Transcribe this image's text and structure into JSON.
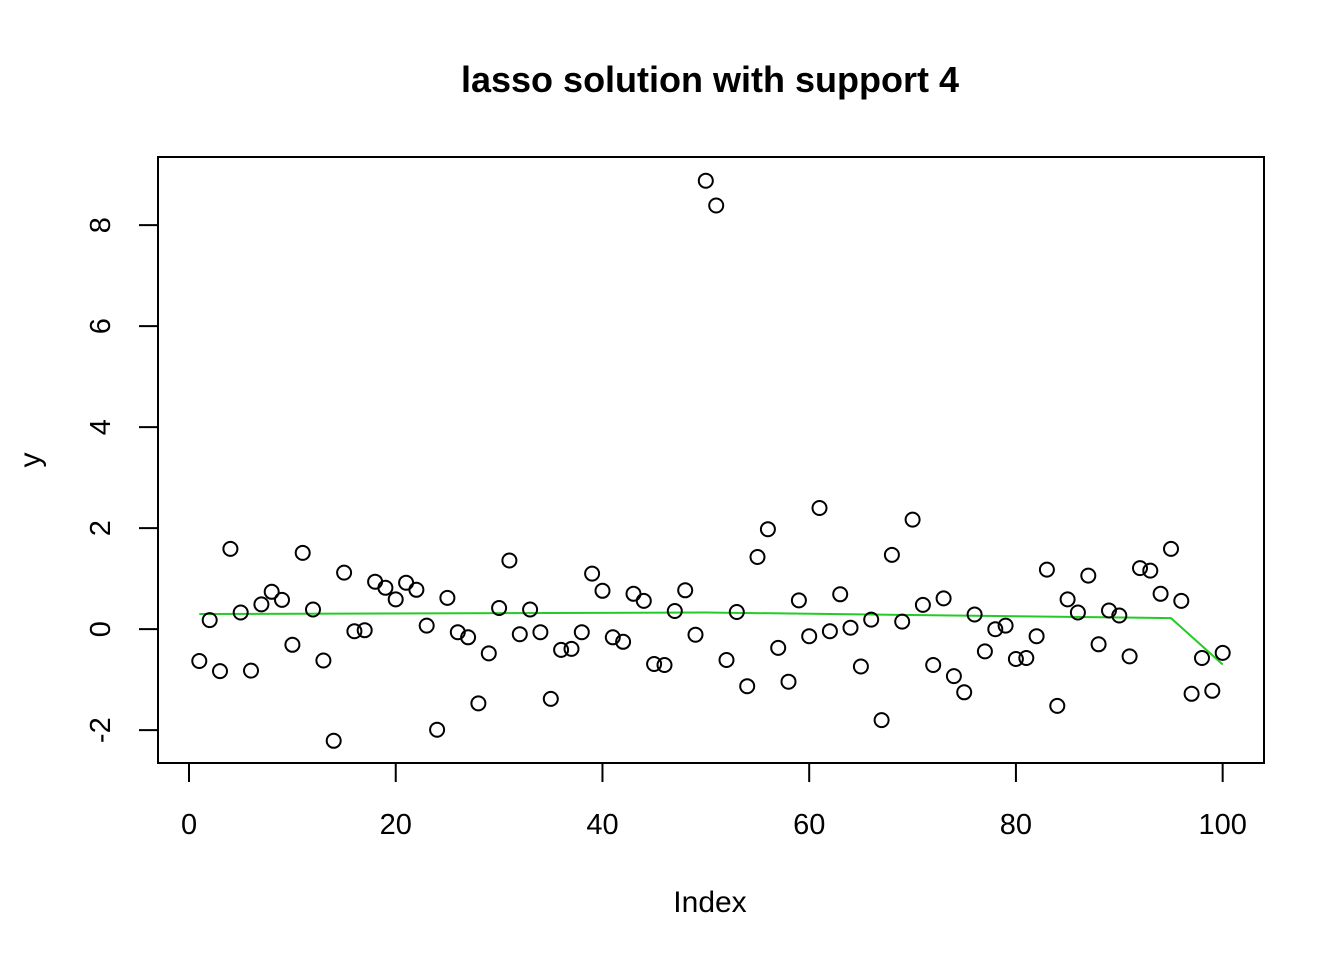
{
  "chart_data": {
    "type": "scatter",
    "title": "lasso solution with support 4",
    "xlabel": "Index",
    "ylabel": "y",
    "xlim": [
      -3,
      104
    ],
    "ylim": [
      -2.65,
      9.35
    ],
    "xticks": [
      0,
      20,
      40,
      60,
      80,
      100
    ],
    "xtick_labels": [
      "0",
      "20",
      "40",
      "60",
      "80",
      "100"
    ],
    "yticks": [
      -2,
      0,
      2,
      4,
      6,
      8
    ],
    "ytick_labels": [
      "-2",
      "0",
      "2",
      "4",
      "6",
      "8"
    ],
    "grid": false,
    "legend": "none",
    "colors": {
      "points": "#000000",
      "fit": "#22cc22",
      "frame": "#000000"
    },
    "series": [
      {
        "kind": "points",
        "x": [
          1,
          2,
          3,
          4,
          5,
          6,
          7,
          8,
          9,
          10,
          11,
          12,
          13,
          14,
          15,
          16,
          17,
          18,
          19,
          20,
          21,
          22,
          23,
          24,
          25,
          26,
          27,
          28,
          29,
          30,
          31,
          32,
          33,
          34,
          35,
          36,
          37,
          38,
          39,
          40,
          41,
          42,
          43,
          44,
          45,
          46,
          47,
          48,
          49,
          50,
          51,
          52,
          53,
          54,
          55,
          56,
          57,
          58,
          59,
          60,
          61,
          62,
          63,
          64,
          65,
          66,
          67,
          68,
          69,
          70,
          71,
          72,
          73,
          74,
          75,
          76,
          77,
          78,
          79,
          80,
          81,
          82,
          83,
          84,
          85,
          86,
          87,
          88,
          89,
          90,
          91,
          92,
          93,
          94,
          95,
          96,
          97,
          98,
          99,
          100
        ],
        "y": [
          -0.63,
          0.18,
          -0.83,
          1.59,
          0.33,
          -0.82,
          0.49,
          0.74,
          0.58,
          -0.31,
          1.51,
          0.39,
          -0.62,
          -2.21,
          1.12,
          -0.04,
          -0.02,
          0.94,
          0.82,
          0.59,
          0.92,
          0.78,
          0.07,
          -1.99,
          0.62,
          -0.06,
          -0.16,
          -1.47,
          -0.48,
          0.42,
          1.36,
          -0.1,
          0.39,
          -0.06,
          -1.38,
          -0.41,
          -0.39,
          -0.06,
          1.1,
          0.76,
          -0.16,
          -0.25,
          0.7,
          0.56,
          -0.69,
          -0.71,
          0.36,
          0.77,
          -0.11,
          8.88,
          8.39,
          -0.61,
          0.34,
          -1.13,
          1.43,
          1.98,
          -0.37,
          -1.04,
          0.57,
          -0.14,
          2.4,
          -0.04,
          0.69,
          0.03,
          -0.74,
          0.19,
          -1.8,
          1.47,
          0.15,
          2.17,
          0.48,
          -0.71,
          0.61,
          -0.93,
          -1.25,
          0.29,
          -0.44,
          0.0,
          0.07,
          -0.59,
          -0.57,
          -0.14,
          1.18,
          -1.52,
          0.59,
          0.33,
          1.06,
          -0.3,
          0.37,
          0.27,
          -0.54,
          1.21,
          1.16,
          0.7,
          1.59,
          0.56,
          -1.28,
          -0.57,
          -1.22,
          -0.47
        ]
      },
      {
        "kind": "line",
        "x": [
          1,
          50,
          95,
          100
        ],
        "y": [
          0.3,
          0.33,
          0.22,
          -0.7
        ]
      }
    ]
  }
}
